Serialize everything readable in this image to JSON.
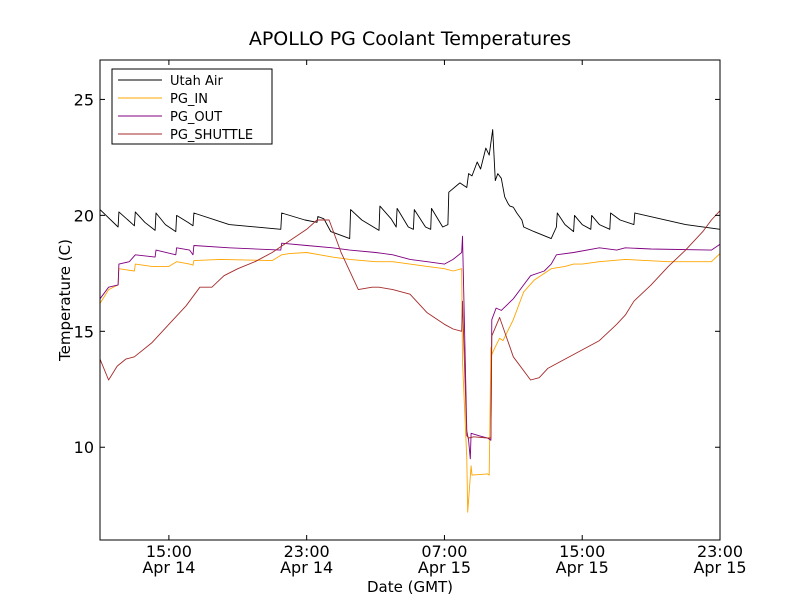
{
  "chart_data": {
    "type": "line",
    "title": "APOLLO PG Coolant Temperatures",
    "xlabel": "Date (GMT)",
    "ylabel": "Temperature (C)",
    "x_unit": "hours since Apr 14 00:00 GMT",
    "xlim": [
      11,
      47
    ],
    "ylim": [
      6,
      26.7
    ],
    "y_ticks": [
      10,
      15,
      20,
      25
    ],
    "x_ticks": [
      {
        "value": 15,
        "time": "15:00",
        "date": "Apr 14"
      },
      {
        "value": 23,
        "time": "23:00",
        "date": "Apr 14"
      },
      {
        "value": 31,
        "time": "07:00",
        "date": "Apr 15"
      },
      {
        "value": 39,
        "time": "15:00",
        "date": "Apr 15"
      },
      {
        "value": 47,
        "time": "23:00",
        "date": "Apr 15"
      }
    ],
    "grid": false,
    "legend": "top-left",
    "series": [
      {
        "name": "Utah Air",
        "color": "#000000",
        "x": [
          11.0,
          12.05,
          12.1,
          13.0,
          13.05,
          13.6,
          14.2,
          14.25,
          14.8,
          15.4,
          15.45,
          16.1,
          16.4,
          16.45,
          18.5,
          21.5,
          21.55,
          22.9,
          23.6,
          23.65,
          24.0,
          24.4,
          25.5,
          25.55,
          26.2,
          27.2,
          27.25,
          27.9,
          28.2,
          28.25,
          28.9,
          29.2,
          29.25,
          29.9,
          30.2,
          30.25,
          30.9,
          31.2,
          31.25,
          31.9,
          32.3,
          32.4,
          32.6,
          32.9,
          33.1,
          33.4,
          33.6,
          33.8,
          33.95,
          34.1,
          34.3,
          34.5,
          34.7,
          34.8,
          35.0,
          35.2,
          35.5,
          35.6,
          36.2,
          37.2,
          37.5,
          37.55,
          38.0,
          38.5,
          38.55,
          39.0,
          39.5,
          39.55,
          40.0,
          40.6,
          40.65,
          41.2,
          42.0,
          42.05,
          45.0,
          47.0
        ],
        "y": [
          20.25,
          19.5,
          20.15,
          19.55,
          20.15,
          19.7,
          19.35,
          20.1,
          19.6,
          19.3,
          20.0,
          19.7,
          19.55,
          20.1,
          19.6,
          19.4,
          20.1,
          19.8,
          19.7,
          19.95,
          19.85,
          19.3,
          19.0,
          20.25,
          19.8,
          19.35,
          20.4,
          19.85,
          19.5,
          20.3,
          19.5,
          19.4,
          20.25,
          19.5,
          19.4,
          20.3,
          19.5,
          19.6,
          21.0,
          21.4,
          21.2,
          21.8,
          21.7,
          22.3,
          22.0,
          22.9,
          22.6,
          23.7,
          21.5,
          21.8,
          21.6,
          20.8,
          20.5,
          20.4,
          20.35,
          20.1,
          19.8,
          19.5,
          19.3,
          19.0,
          19.5,
          20.1,
          19.6,
          19.3,
          20.0,
          19.6,
          19.4,
          20.0,
          19.6,
          19.4,
          20.1,
          19.8,
          19.6,
          20.1,
          19.6,
          19.4
        ]
      },
      {
        "name": "PG_IN",
        "color": "#ffa500",
        "x": [
          11.0,
          11.5,
          12.05,
          12.1,
          13.0,
          13.05,
          14.0,
          15.0,
          15.45,
          16.2,
          16.4,
          16.45,
          18.0,
          21.0,
          21.55,
          22.0,
          23.0,
          24.5,
          25.5,
          27.0,
          28.0,
          29.0,
          30.0,
          31.0,
          31.5,
          32.0,
          32.05,
          32.3,
          32.35,
          32.55,
          32.6,
          33.5,
          33.6,
          33.7,
          33.75,
          34.0,
          34.2,
          34.4,
          35.0,
          35.6,
          36.2,
          37.2,
          38.0,
          38.5,
          39.0,
          40.0,
          41.5,
          44.0,
          46.5,
          47.0
        ],
        "y": [
          16.2,
          16.8,
          17.0,
          17.7,
          17.6,
          17.9,
          17.8,
          17.8,
          18.0,
          17.9,
          17.85,
          18.05,
          18.1,
          18.05,
          18.3,
          18.35,
          18.4,
          18.2,
          18.1,
          18.0,
          18.0,
          17.9,
          17.8,
          17.7,
          17.6,
          17.7,
          13.7,
          9.5,
          7.2,
          9.2,
          8.8,
          8.85,
          8.8,
          14.3,
          14.0,
          14.4,
          14.7,
          14.6,
          15.5,
          16.7,
          17.2,
          17.7,
          17.8,
          17.9,
          17.9,
          18.0,
          18.1,
          18.0,
          18.0,
          18.35
        ]
      },
      {
        "name": "PG_OUT",
        "color": "#800080",
        "x": [
          11.0,
          11.5,
          12.05,
          12.1,
          12.7,
          13.05,
          14.2,
          14.25,
          15.4,
          15.45,
          16.2,
          16.4,
          16.45,
          18.5,
          21.5,
          21.55,
          23.0,
          24.5,
          25.5,
          27.0,
          28.0,
          29.0,
          30.0,
          31.0,
          31.5,
          32.0,
          32.05,
          32.3,
          32.4,
          32.5,
          32.55,
          33.0,
          33.5,
          33.7,
          33.75,
          34.0,
          34.3,
          35.0,
          35.6,
          36.0,
          36.8,
          37.2,
          37.5,
          38.5,
          40.0,
          41.0,
          41.5,
          43.0,
          46.5,
          47.0
        ],
        "y": [
          16.4,
          16.9,
          17.0,
          17.9,
          18.0,
          18.3,
          18.2,
          18.5,
          18.3,
          18.6,
          18.5,
          18.3,
          18.7,
          18.6,
          18.5,
          18.8,
          18.7,
          18.6,
          18.5,
          18.4,
          18.3,
          18.1,
          18.0,
          17.9,
          18.1,
          18.4,
          19.1,
          10.7,
          10.3,
          9.5,
          10.6,
          10.5,
          10.4,
          10.3,
          15.5,
          16.0,
          15.9,
          16.4,
          17.0,
          17.4,
          17.6,
          17.9,
          18.3,
          18.4,
          18.6,
          18.5,
          18.6,
          18.55,
          18.5,
          18.75
        ]
      },
      {
        "name": "PG_SHUTTLE",
        "color": "#a52a2a",
        "x": [
          11.0,
          11.5,
          12.0,
          12.5,
          13.0,
          14.0,
          15.0,
          16.0,
          16.8,
          17.5,
          18.2,
          19.0,
          20.0,
          21.0,
          22.0,
          23.0,
          23.6,
          24.3,
          25.0,
          26.0,
          26.8,
          27.2,
          28.0,
          29.0,
          30.0,
          31.0,
          31.5,
          32.0,
          32.05,
          32.3,
          32.4,
          32.7,
          33.5,
          33.7,
          33.75,
          34.2,
          35.0,
          36.0,
          36.5,
          37.0,
          38.0,
          39.0,
          40.0,
          41.0,
          41.5,
          42.0,
          43.0,
          44.0,
          45.0,
          46.0,
          46.5,
          47.0
        ],
        "y": [
          13.8,
          12.9,
          13.5,
          13.8,
          13.9,
          14.5,
          15.3,
          16.1,
          16.9,
          16.9,
          17.4,
          17.7,
          18.0,
          18.4,
          18.9,
          19.4,
          19.8,
          19.8,
          18.4,
          16.8,
          16.9,
          16.9,
          16.8,
          16.6,
          15.8,
          15.3,
          15.1,
          15.0,
          16.3,
          10.5,
          10.4,
          10.45,
          10.4,
          10.4,
          14.8,
          15.6,
          13.9,
          12.9,
          13.0,
          13.4,
          13.8,
          14.2,
          14.6,
          15.3,
          15.7,
          16.3,
          17.0,
          17.8,
          18.5,
          19.3,
          19.8,
          20.2
        ]
      }
    ]
  }
}
